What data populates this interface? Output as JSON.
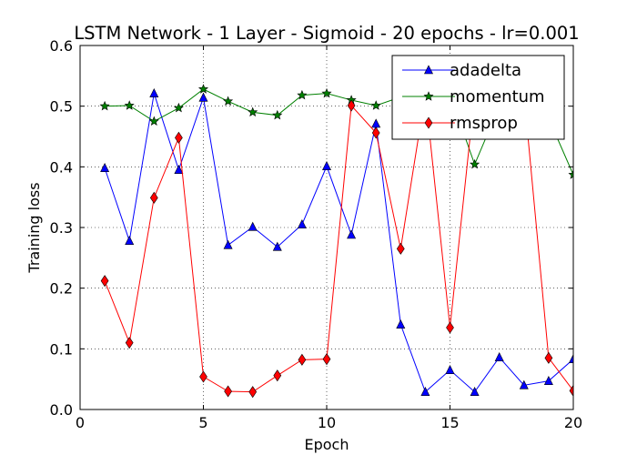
{
  "chart_data": {
    "type": "line",
    "title": "LSTM Network - 1 Layer - Sigmoid - 20 epochs - lr=0.001",
    "xlabel": "Epoch",
    "ylabel": "Training loss",
    "xlim": [
      0,
      20
    ],
    "ylim": [
      0.0,
      0.6
    ],
    "xticks": [
      "0",
      "5",
      "10",
      "15",
      "20"
    ],
    "yticks": [
      "0.0",
      "0.1",
      "0.2",
      "0.3",
      "0.4",
      "0.5",
      "0.6"
    ],
    "grid": true,
    "legend_position": "top-right",
    "x": [
      1,
      2,
      3,
      4,
      5,
      6,
      7,
      8,
      9,
      10,
      11,
      12,
      13,
      14,
      15,
      16,
      17,
      18,
      19,
      20
    ],
    "series": [
      {
        "name": "adadelta",
        "color": "#0000ff",
        "marker": "triangle",
        "values": [
          0.398,
          0.278,
          0.521,
          0.395,
          0.514,
          0.271,
          0.301,
          0.268,
          0.305,
          0.401,
          0.288,
          0.471,
          0.14,
          0.029,
          0.065,
          0.029,
          0.086,
          0.04,
          0.047,
          0.083
        ]
      },
      {
        "name": "momentum",
        "color": "#008000",
        "marker": "star",
        "values": [
          0.5,
          0.501,
          0.475,
          0.497,
          0.528,
          0.508,
          0.49,
          0.485,
          0.518,
          0.521,
          0.51,
          0.501,
          0.515,
          0.52,
          0.52,
          0.404,
          0.5,
          0.52,
          0.48,
          0.387
        ]
      },
      {
        "name": "rmsprop",
        "color": "#ff0000",
        "marker": "diamond",
        "values": [
          0.212,
          0.11,
          0.349,
          0.448,
          0.054,
          0.03,
          0.029,
          0.056,
          0.082,
          0.083,
          0.501,
          0.456,
          0.265,
          0.52,
          0.135,
          0.52,
          0.52,
          0.52,
          0.085,
          0.031
        ]
      }
    ]
  }
}
